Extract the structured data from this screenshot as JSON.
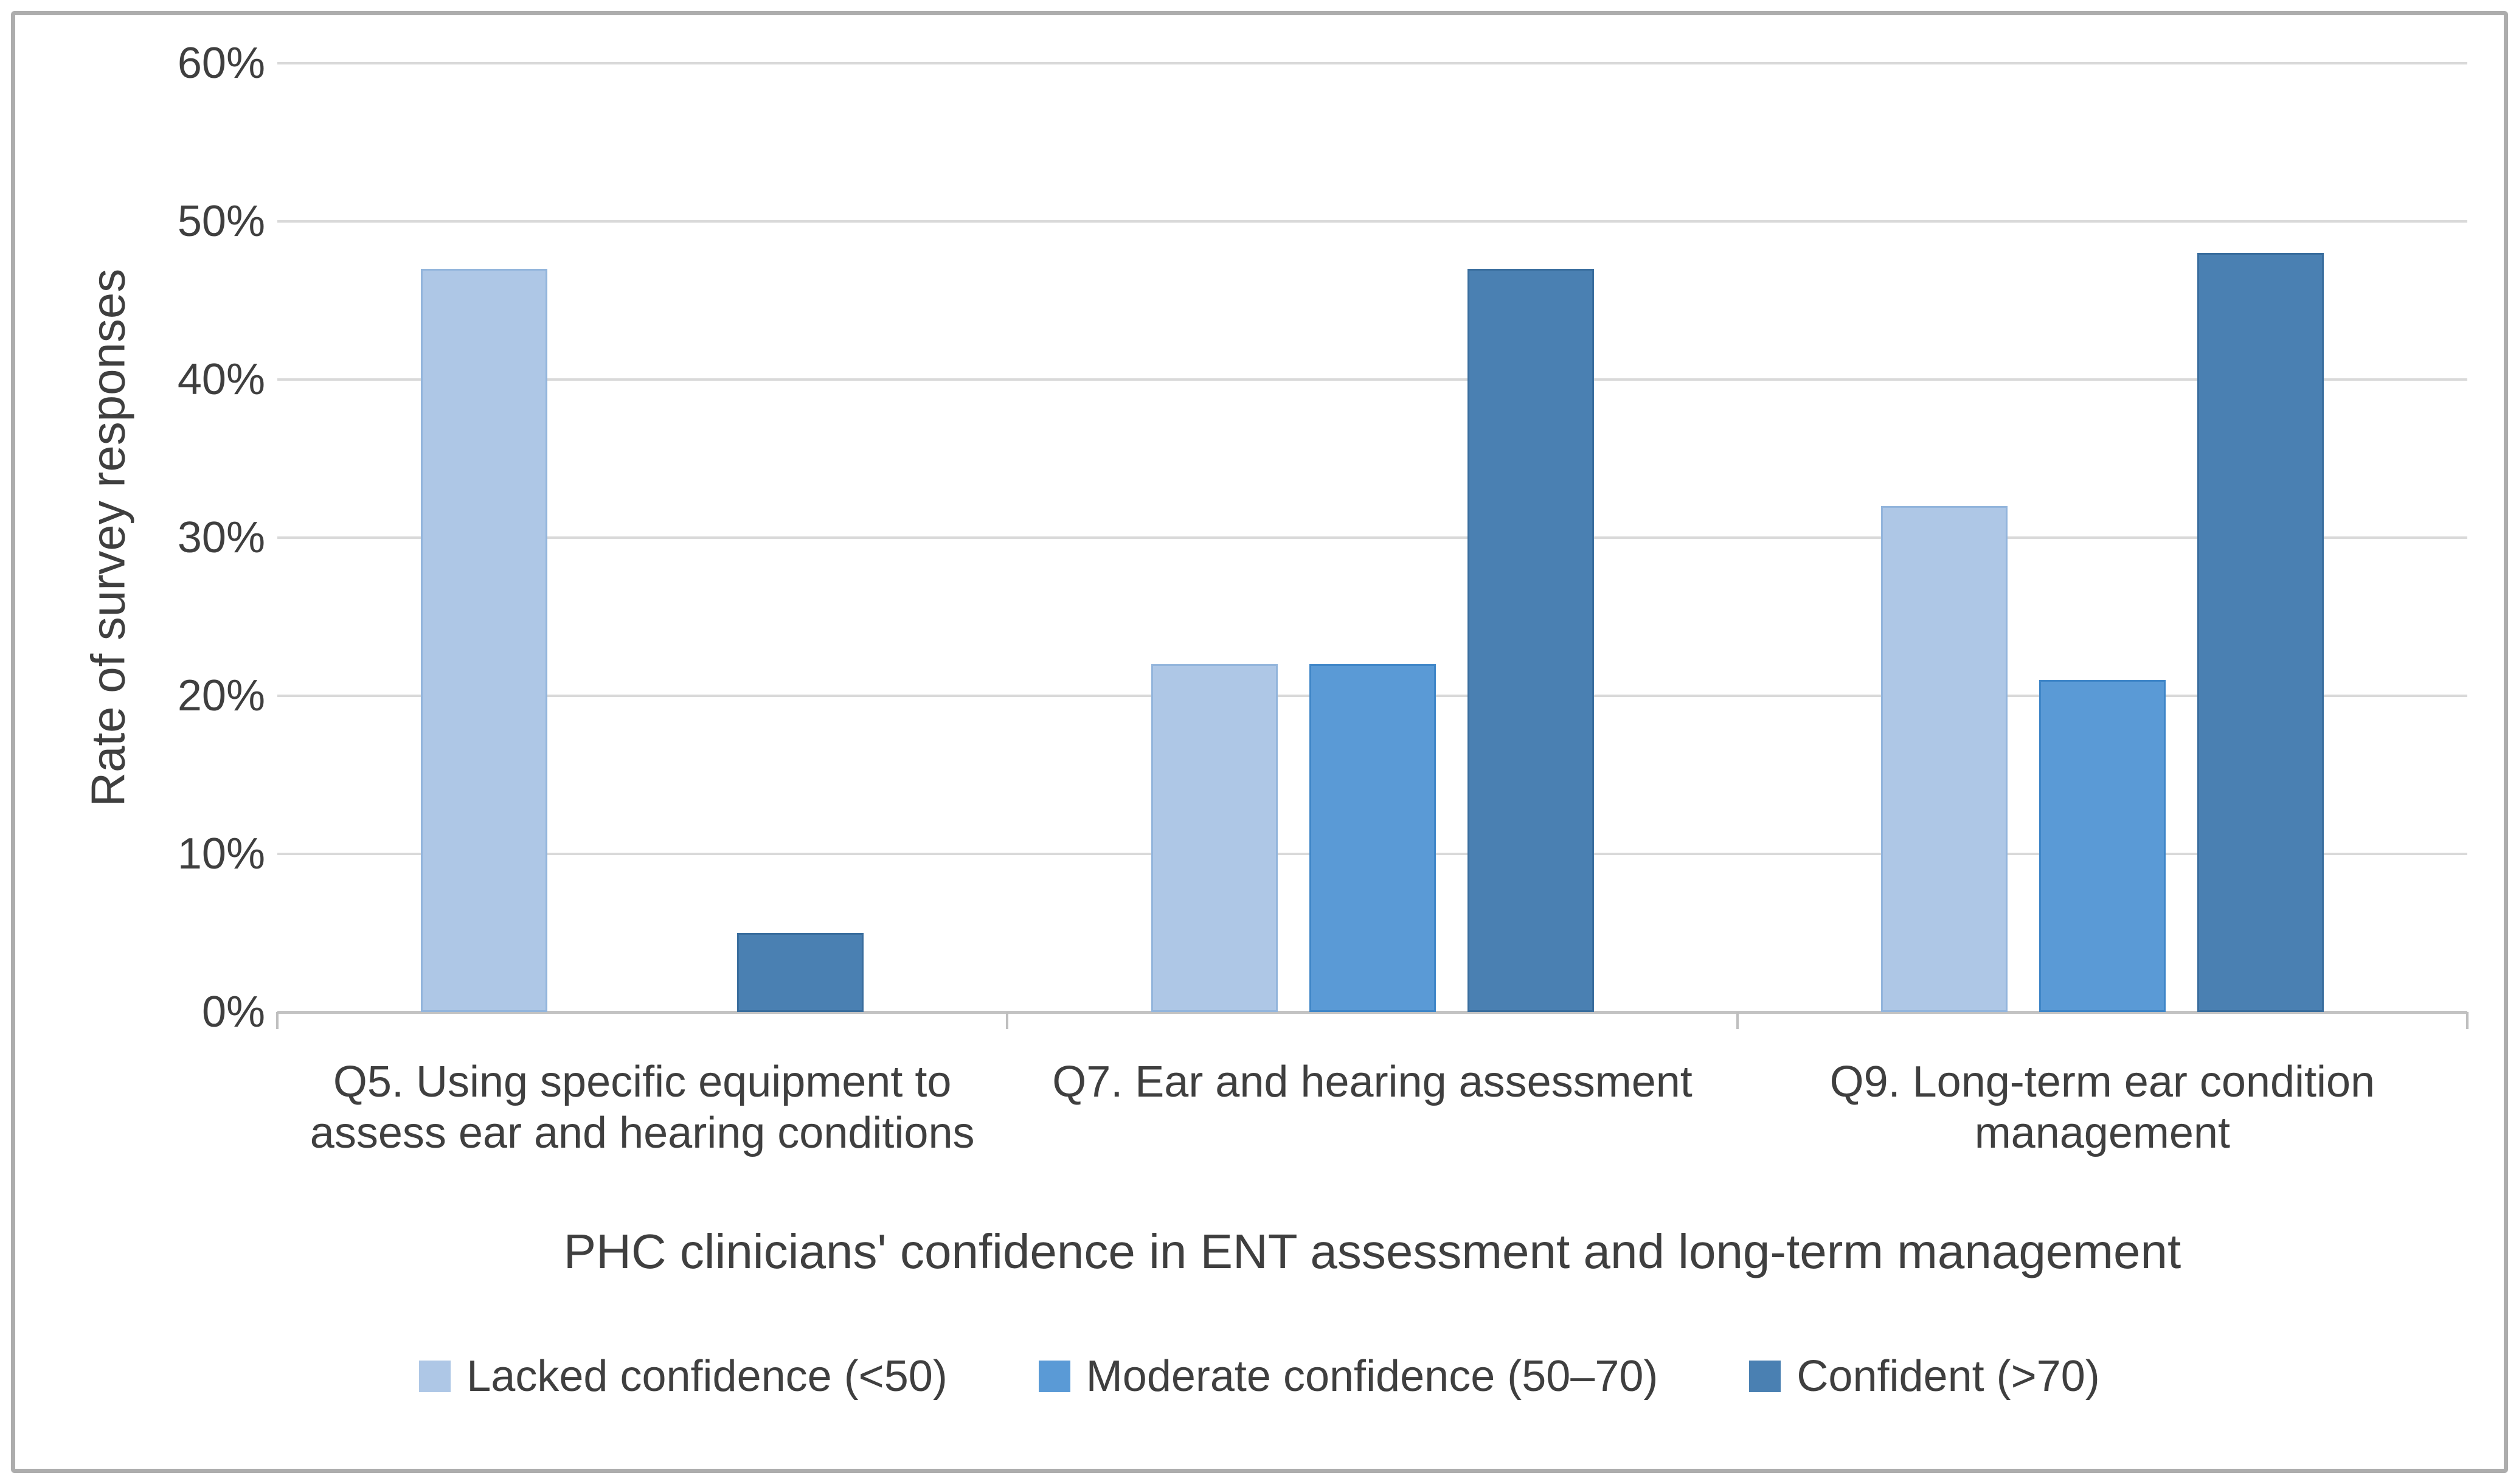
{
  "figure": {
    "background_color": "#FFFFFF",
    "frame_border_color": "#ADADAD",
    "gridline_color": "#D9D9D9",
    "axis_line_color": "#C3C3C3",
    "text_color": "#3F3F3F"
  },
  "chart_data": {
    "type": "bar",
    "ylabel": "Rate of survey responses",
    "xlabel": "PHC clinicians' confidence in ENT assessment and long-term management",
    "categories": [
      "Q5. Using specific equipment to assess ear and hearing conditions",
      "Q7. Ear and hearing assessment",
      "Q9. Long-term ear condition management"
    ],
    "series": [
      {
        "name": "Lacked confidence (<50)",
        "color": "#AEC7E6",
        "border_color": "#93B5DC",
        "values": [
          47,
          22,
          32
        ]
      },
      {
        "name": "Moderate confidence (50–70)",
        "color": "#5A9AD6",
        "border_color": "#3F86C8",
        "values": [
          0,
          22,
          21
        ]
      },
      {
        "name": "Confident (>70)",
        "color": "#4A80B2",
        "border_color": "#3A6E9E",
        "values": [
          5,
          47,
          48
        ]
      }
    ],
    "ylim": [
      0,
      60
    ],
    "ytick_step": 10,
    "yticks": [
      "0%",
      "10%",
      "20%",
      "30%",
      "40%",
      "50%",
      "60%"
    ],
    "grid": true,
    "legend_position": "bottom"
  }
}
